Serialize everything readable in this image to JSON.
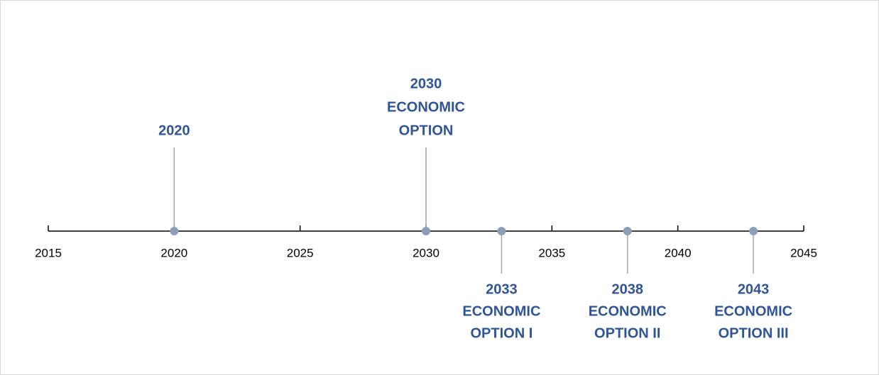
{
  "chart_data": {
    "type": "timeline",
    "xlim": [
      2015,
      2045
    ],
    "xticks": [
      2015,
      2020,
      2025,
      2030,
      2035,
      2040,
      2045
    ],
    "label_color": "#2f5597",
    "marker_color": "#8d9fb8",
    "stem_color": "#a6a6a6",
    "events": [
      {
        "x": 2020,
        "side": "above",
        "label": [
          "2020"
        ]
      },
      {
        "x": 2030,
        "side": "above",
        "label": [
          "2030",
          "ECONOMIC",
          "OPTION"
        ]
      },
      {
        "x": 2033,
        "side": "below",
        "label": [
          "2033",
          "ECONOMIC",
          "OPTION I"
        ]
      },
      {
        "x": 2038,
        "side": "below",
        "label": [
          "2038",
          "ECONOMIC",
          "OPTION II"
        ]
      },
      {
        "x": 2043,
        "side": "below",
        "label": [
          "2043",
          "ECONOMIC",
          "OPTION III"
        ]
      }
    ]
  }
}
